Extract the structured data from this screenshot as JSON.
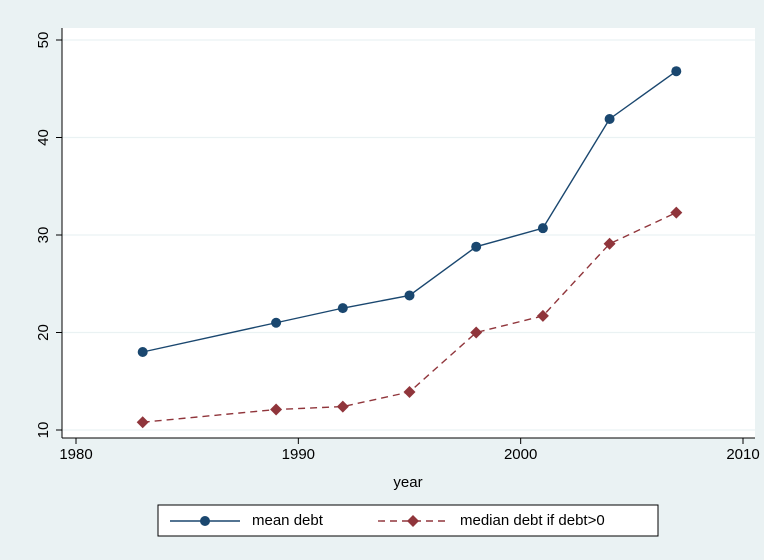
{
  "chart_data": {
    "type": "line",
    "xlabel": "year",
    "x": [
      1983,
      1989,
      1992,
      1995,
      1998,
      2001,
      2004,
      2007
    ],
    "series": [
      {
        "name": "mean debt",
        "color": "#1a476f",
        "marker": "circle",
        "linestyle": "solid",
        "values": [
          18.0,
          21.0,
          22.5,
          23.8,
          28.8,
          30.7,
          41.9,
          46.8
        ]
      },
      {
        "name": "median debt if debt>0",
        "color": "#90353b",
        "marker": "diamond",
        "linestyle": "dashed",
        "values": [
          10.8,
          12.1,
          12.4,
          13.9,
          20.0,
          21.7,
          29.1,
          32.3
        ]
      }
    ],
    "xlim": [
      1980,
      2010
    ],
    "xticks": [
      1980,
      1990,
      2000,
      2010
    ],
    "ylim": [
      10,
      50
    ],
    "yticks": [
      10,
      20,
      30,
      40,
      50
    ],
    "grid": true,
    "legend": "bottom"
  }
}
